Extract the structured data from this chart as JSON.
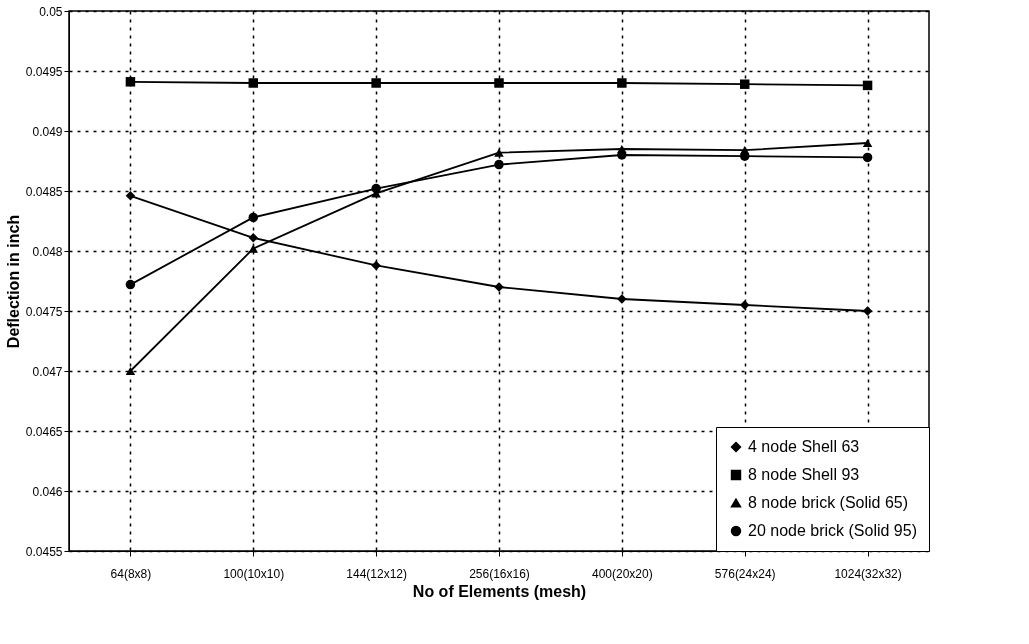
{
  "chart_data": {
    "type": "line",
    "xlabel": "No of Elements (mesh)",
    "ylabel": "Deflection in inch",
    "categories": [
      "64(8x8)",
      "100(10x10)",
      "144(12x12)",
      "256(16x16)",
      "400(20x20)",
      "576(24x24)",
      "1024(32x32)"
    ],
    "series": [
      {
        "name": "4 node Shell 63",
        "color": "#000000",
        "marker": "diamond",
        "values": [
          0.04846,
          0.04811,
          0.04788,
          0.0477,
          0.0476,
          0.04755,
          0.0475
        ]
      },
      {
        "name": "8 node Shell 93",
        "color": "#000000",
        "marker": "square",
        "values": [
          0.04941,
          0.0494,
          0.0494,
          0.0494,
          0.0494,
          0.04939,
          0.04938
        ]
      },
      {
        "name": "8 node brick (Solid 65)",
        "color": "#000000",
        "marker": "triangle",
        "values": [
          0.047,
          0.04802,
          0.04848,
          0.04882,
          0.04885,
          0.04884,
          0.0489
        ]
      },
      {
        "name": "20 node brick (Solid 95)",
        "color": "#000000",
        "marker": "circle",
        "values": [
          0.04772,
          0.04828,
          0.04852,
          0.04872,
          0.0488,
          0.04879,
          0.04878
        ]
      }
    ],
    "ylim": [
      0.0455,
      0.05
    ],
    "yticks": [
      0.0455,
      0.046,
      0.0465,
      0.047,
      0.0475,
      0.048,
      0.0485,
      0.049,
      0.0495,
      0.05
    ],
    "grid": true,
    "legend": "bottom right",
    "line_style": "solid"
  }
}
